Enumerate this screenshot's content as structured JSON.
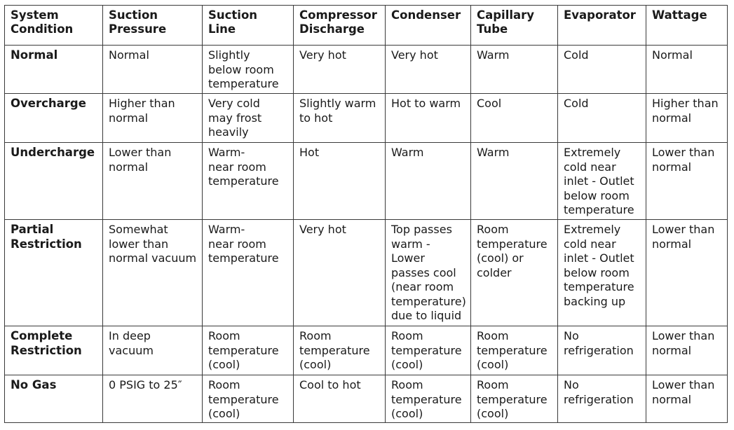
{
  "table": {
    "headers": [
      "System\nCondition",
      "Suction\nPressure",
      "Suction\nLine",
      "Compressor\nDischarge",
      "Condenser",
      "Capillary\nTube",
      "Evaporator",
      "Wattage"
    ],
    "rows": [
      {
        "condition": "Normal",
        "cells": [
          "Normal",
          "Slightly\nbelow room\ntemperature",
          "Very hot",
          "Very hot",
          "Warm",
          "Cold",
          "Normal"
        ]
      },
      {
        "condition": "Overcharge",
        "cells": [
          "Higher than\nnormal",
          "Very cold\nmay frost\nheavily",
          "Slightly warm\nto hot",
          "Hot to warm",
          "Cool",
          "Cold",
          "Higher than\nnormal"
        ]
      },
      {
        "condition": "Undercharge",
        "cells": [
          "Lower than\nnormal",
          "Warm-\nnear room\ntemperature",
          "Hot",
          "Warm",
          "Warm",
          "Extremely\ncold near\ninlet - Outlet\nbelow room\ntemperature",
          "Lower than\nnormal"
        ]
      },
      {
        "condition": "Partial\nRestriction",
        "cells": [
          "Somewhat\nlower than\nnormal vacuum",
          "Warm-\nnear room\ntemperature",
          "Very hot",
          "Top passes\nwarm -\nLower\npasses cool\n(near room\ntemperature)\ndue to liquid",
          "Room\ntemperature\n(cool) or\ncolder",
          "Extremely\ncold near\ninlet - Outlet\nbelow room\ntemperature\nbacking up",
          "Lower than\nnormal"
        ]
      },
      {
        "condition": "Complete\nRestriction",
        "cells": [
          "In deep\nvacuum",
          "Room\ntemperature\n(cool)",
          "Room\ntemperature\n(cool)",
          "Room\ntemperature\n(cool)",
          "Room\ntemperature\n(cool)",
          "No\nrefrigeration",
          "Lower than\nnormal"
        ]
      },
      {
        "condition": "No Gas",
        "cells": [
          "0 PSIG to 25″",
          "Room\ntemperature\n(cool)",
          "Cool to hot",
          "Room\ntemperature\n(cool)",
          "Room\ntemperature\n(cool)",
          "No\nrefrigeration",
          "Lower than\nnormal"
        ]
      }
    ]
  }
}
